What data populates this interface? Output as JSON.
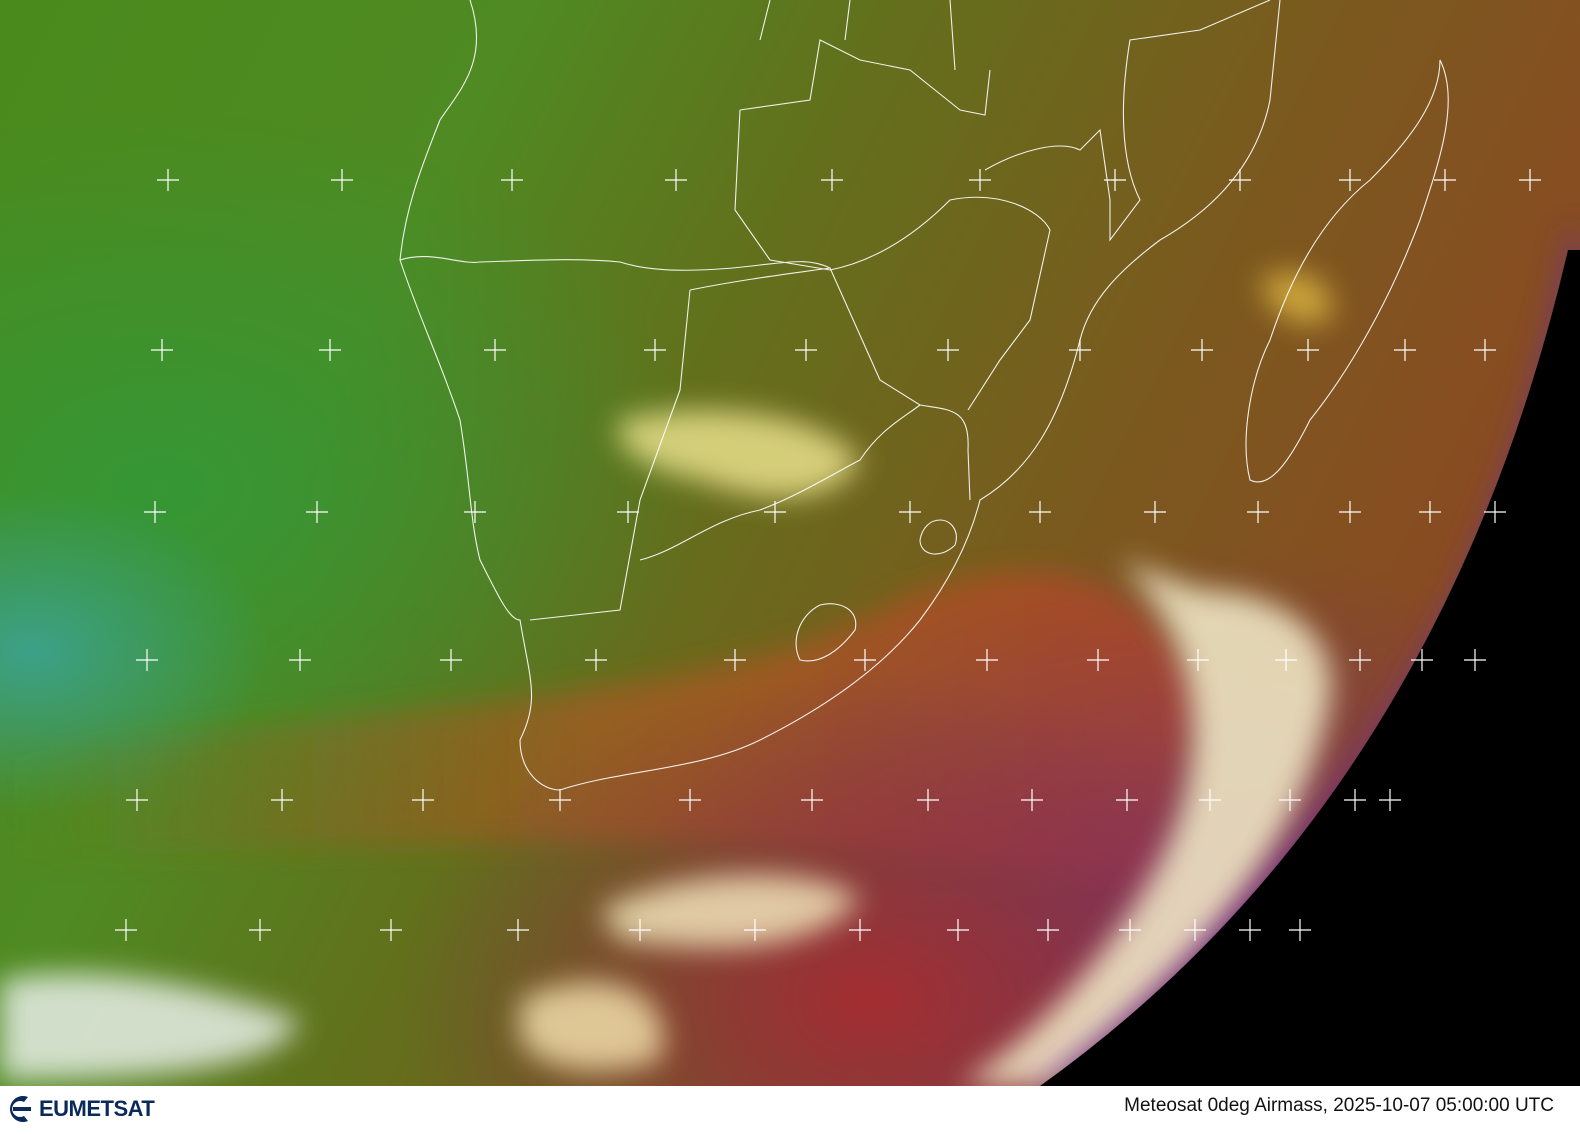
{
  "image": {
    "type": "satellite-composite",
    "colors": {
      "space": "#000000",
      "ocean_left": "#3f8a2a",
      "land": "#6a6a1f",
      "airmass_red": "#a84a20",
      "limb": "#7a2aa0",
      "borders": "#ffffff"
    }
  },
  "footer": {
    "logo_text": "EUMETSAT",
    "logo_icon": "eumetsat-logo-icon",
    "caption": "Meteosat 0deg Airmass, 2025-10-07 05:00:00 UTC"
  }
}
